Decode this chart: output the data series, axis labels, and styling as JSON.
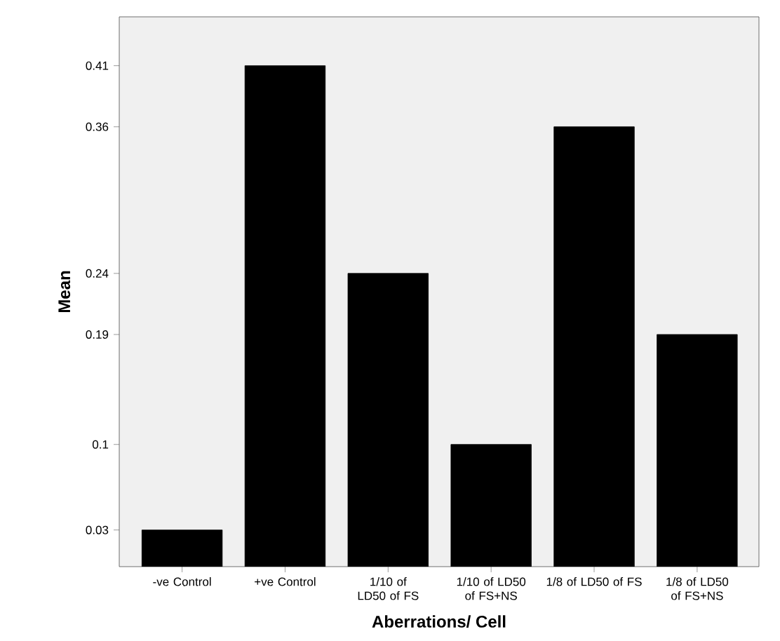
{
  "chart_data": {
    "type": "bar",
    "xlabel": "Aberrations/ Cell",
    "ylabel": "Mean",
    "categories": [
      "-ve Control",
      "+ve Control",
      "1/10 of LD50 of FS",
      "1/10 of LD50 of FS+NS",
      "1/8 of LD50 of FS",
      "1/8 of LD50 of FS+NS"
    ],
    "values": [
      0.03,
      0.41,
      0.24,
      0.1,
      0.36,
      0.19
    ],
    "color": "#000000",
    "ylim": [
      0,
      0.45
    ],
    "yticks": [
      0.03,
      0.1,
      0.19,
      0.24,
      0.36,
      0.41
    ]
  }
}
